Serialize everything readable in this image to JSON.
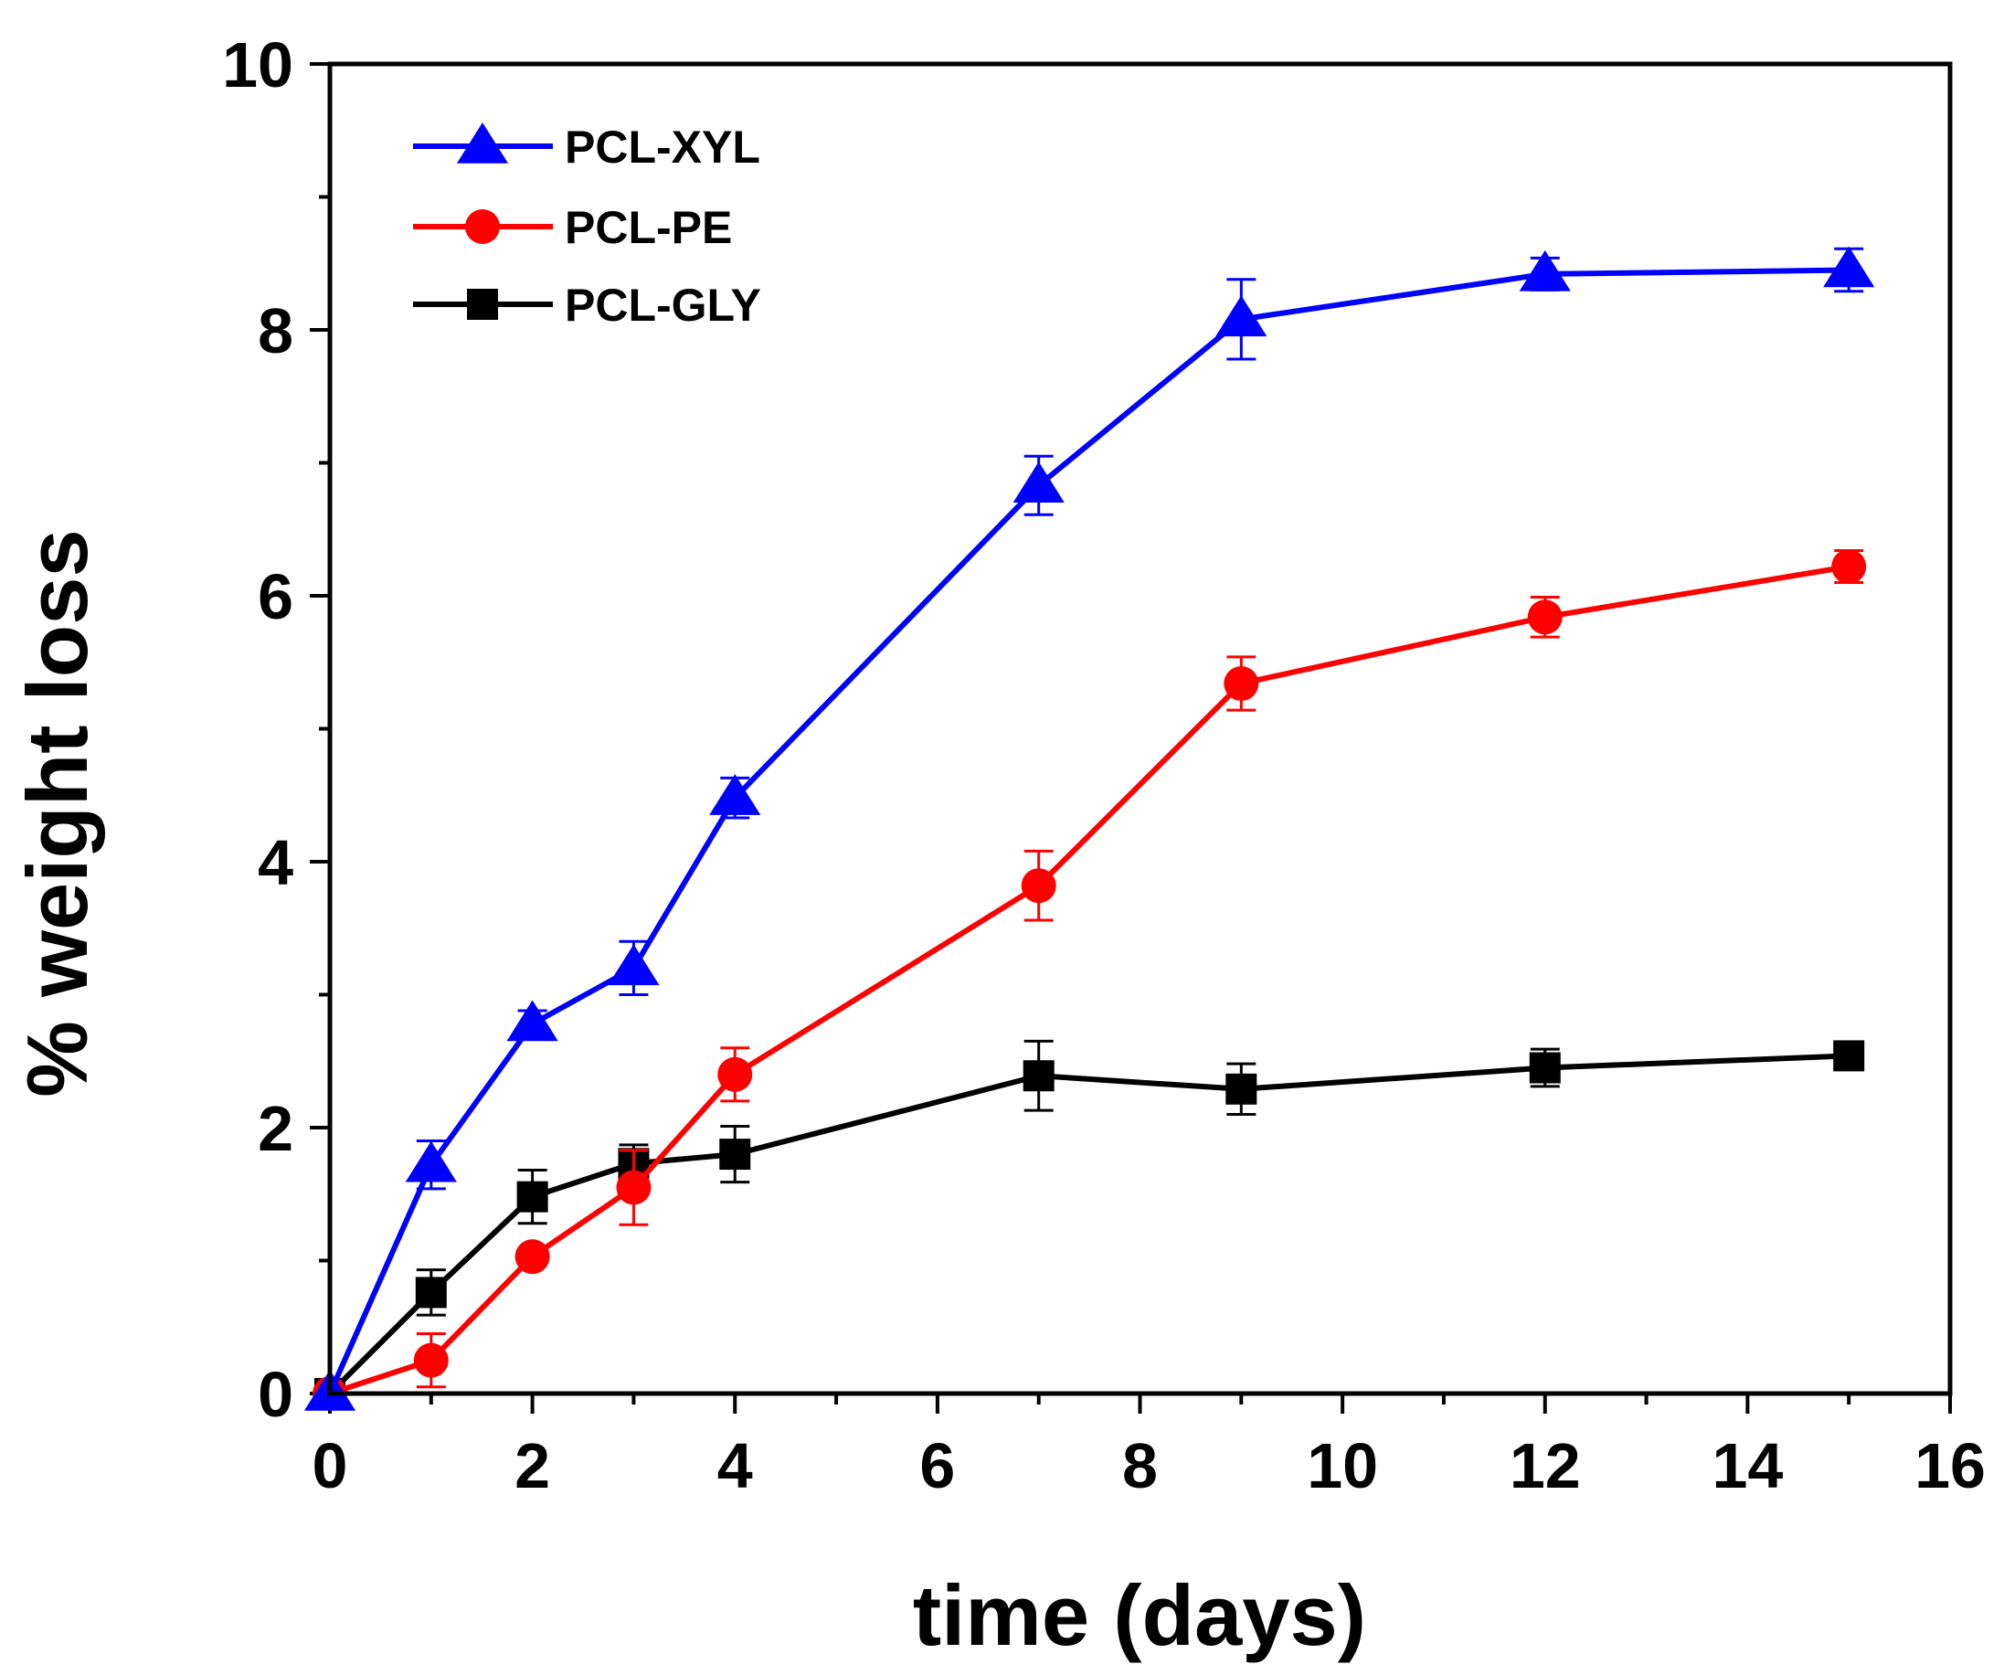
{
  "chart_data": {
    "type": "line",
    "title": "",
    "xlabel": "time (days)",
    "ylabel": "% weight loss",
    "xlim": [
      0,
      16
    ],
    "ylim": [
      0,
      10
    ],
    "xticks": [
      0,
      2,
      4,
      6,
      8,
      10,
      12,
      14,
      16
    ],
    "yticks": [
      0,
      2,
      4,
      6,
      8,
      10
    ],
    "xtick_labels": [
      "0",
      "2",
      "4",
      "6",
      "8",
      "10",
      "12",
      "14",
      "16"
    ],
    "ytick_labels": [
      "0",
      "2",
      "4",
      "6",
      "8",
      "10"
    ],
    "grid": false,
    "legend_position": "top-left",
    "series": [
      {
        "name": "PCL-XYL",
        "color": "#0000ff",
        "marker": "triangle",
        "x": [
          0,
          1,
          2,
          3,
          4,
          7,
          9,
          12,
          15
        ],
        "y": [
          0,
          1.72,
          2.78,
          3.2,
          4.48,
          6.83,
          8.08,
          8.42,
          8.45
        ],
        "error": [
          0,
          0.18,
          0.1,
          0.2,
          0.15,
          0.22,
          0.3,
          0.12,
          0.16
        ]
      },
      {
        "name": "PCL-PE",
        "color": "#ff0000",
        "marker": "circle",
        "x": [
          0,
          1,
          2,
          3,
          4,
          7,
          9,
          12,
          15
        ],
        "y": [
          0,
          0.25,
          1.03,
          1.55,
          2.4,
          3.82,
          5.34,
          5.84,
          6.22
        ],
        "error": [
          0,
          0.2,
          0.05,
          0.28,
          0.2,
          0.26,
          0.2,
          0.15,
          0.12
        ]
      },
      {
        "name": "PCL-GLY",
        "color": "#000000",
        "marker": "square",
        "x": [
          0,
          1,
          2,
          3,
          4,
          7,
          9,
          12,
          15
        ],
        "y": [
          0,
          0.76,
          1.48,
          1.73,
          1.8,
          2.39,
          2.29,
          2.45,
          2.54
        ],
        "error": [
          0,
          0.17,
          0.2,
          0.14,
          0.21,
          0.26,
          0.19,
          0.14,
          0.05
        ]
      }
    ]
  }
}
